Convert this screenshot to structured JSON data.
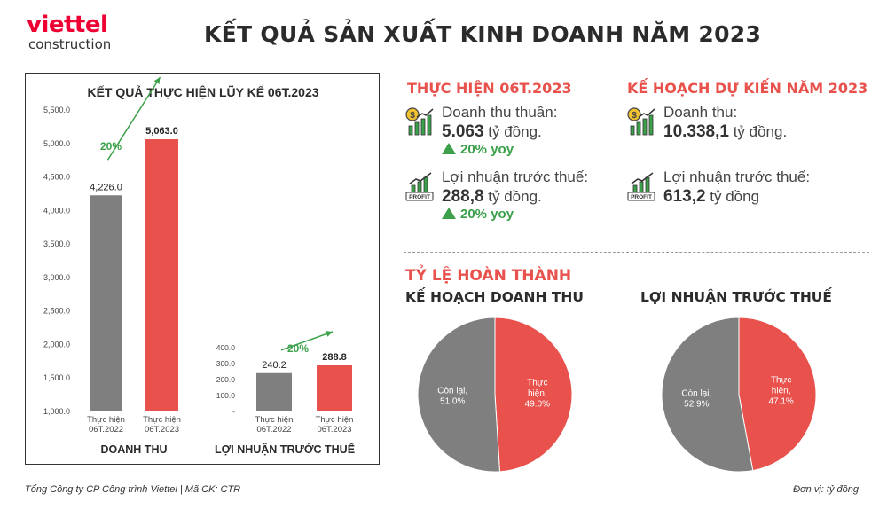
{
  "logo": {
    "brand": "viettel",
    "sub": "construction"
  },
  "title": "KẾT QUẢ SẢN XUẤT KINH DOANH NĂM 2023",
  "colors": {
    "gray": "#7f7f7f",
    "red": "#e8514c",
    "green": "#3ba049"
  },
  "chart_data": [
    {
      "type": "bar",
      "title": "KẾT QUẢ THỰC HIỆN LŨY KẾ 06T.2023",
      "xlabel": "DOANH THU",
      "categories": [
        "Thực hiện\n06T.2022",
        "Thực hiện\n06T.2023"
      ],
      "values": [
        4226.0,
        5063.0
      ],
      "value_labels": [
        "4,226.0",
        "5,063.0"
      ],
      "growth_label": "20%",
      "ylim": [
        1000,
        5500
      ],
      "yticks": [
        "1,000.0",
        "1,500.0",
        "2,000.0",
        "2,500.0",
        "3,000.0",
        "3,500.0",
        "4,000.0",
        "4,500.0",
        "5,000.0",
        "5,500.0"
      ]
    },
    {
      "type": "bar",
      "xlabel": "LỢI NHUẬN TRƯỚC THUẾ",
      "categories": [
        "Thực hiện\n06T.2022",
        "Thực hiện\n06T.2023"
      ],
      "values": [
        240.2,
        288.8
      ],
      "value_labels": [
        "240.2",
        "288.8"
      ],
      "growth_label": "20%",
      "ylim": [
        0,
        400
      ],
      "yticks": [
        "-",
        "100.0",
        "200.0",
        "300.0",
        "400.0"
      ]
    },
    {
      "type": "pie",
      "title": "KẾ HOẠCH DOANH THU",
      "slices": [
        {
          "label": "Thực hiện,",
          "pct_label": "49.0%",
          "value": 49.0,
          "color": "#e8514c"
        },
        {
          "label": "Còn lại,",
          "pct_label": "51.0%",
          "value": 51.0,
          "color": "#7f7f7f"
        }
      ]
    },
    {
      "type": "pie",
      "title": "LỢI NHUẬN TRƯỚC THUẾ",
      "slices": [
        {
          "label": "Thực hiện,",
          "pct_label": "47.1%",
          "value": 47.1,
          "color": "#e8514c"
        },
        {
          "label": "Còn lại,",
          "pct_label": "52.9%",
          "value": 52.9,
          "color": "#7f7f7f"
        }
      ]
    }
  ],
  "actual": {
    "title": "THỰC HIỆN 06T.2023",
    "revenue_label": "Doanh thu thuần:",
    "revenue_value": "5.063",
    "revenue_unit": "tỷ đồng.",
    "revenue_yoy": "20% yoy",
    "profit_label": "Lợi nhuận trước thuế:",
    "profit_value": "288,8",
    "profit_unit": "tỷ đồng.",
    "profit_yoy": "20% yoy",
    "icon_revenue": "revenue-chart-icon",
    "icon_profit": "profit-chart-icon"
  },
  "plan": {
    "title": "KẾ HOẠCH DỰ KIẾN NĂM 2023",
    "revenue_label": "Doanh thu:",
    "revenue_value": "10.338,1",
    "revenue_unit": "tỷ đồng.",
    "profit_label": "Lợi nhuận trước thuế:",
    "profit_value": "613,2",
    "profit_unit": "tỷ đồng"
  },
  "completion": {
    "title": "TỶ LỆ HOÀN THÀNH"
  },
  "profit_icon_text": "PROFIT",
  "footer": {
    "left": "Tổng Công ty CP Công trình Viettel   |   Mã CK: CTR",
    "right": "Đơn vị: tỷ đồng"
  }
}
